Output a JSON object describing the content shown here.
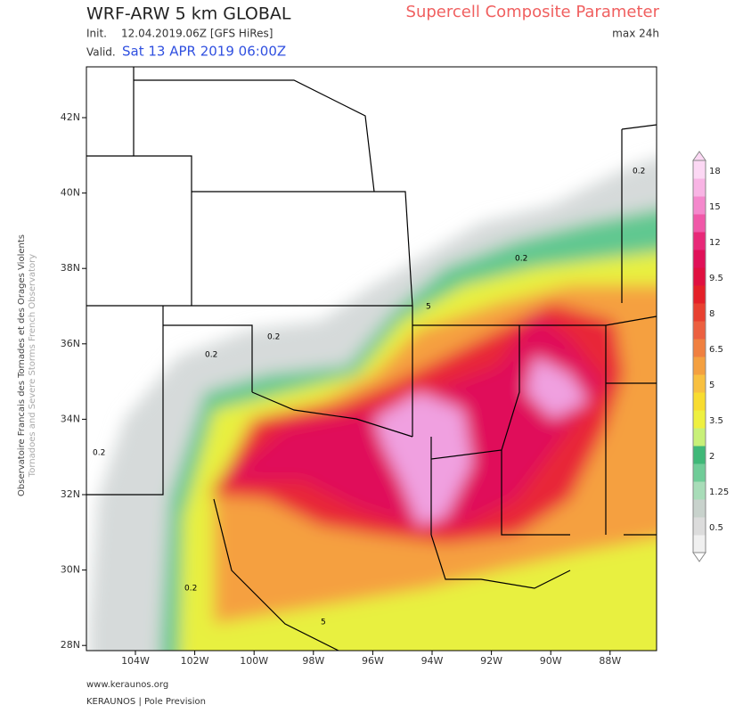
{
  "header": {
    "model": "WRF-ARW 5 km GLOBAL",
    "init_label": "Init.",
    "init_value": "12.04.2019.06Z [GFS HiRes]",
    "valid_label": "Valid.",
    "valid_value": "Sat 13 APR 2019 06:00Z",
    "parameter": "Supercell Composite Parameter",
    "period": "max 24h"
  },
  "side_text": {
    "french": "Observatoire Francais des Tornades et des Orages Violents",
    "english": "Tornadoes and Severe Storms French Observatory"
  },
  "map": {
    "lat_labels": [
      "42N",
      "40N",
      "38N",
      "36N",
      "34N",
      "32N",
      "30N",
      "28N"
    ],
    "lon_labels": [
      "104W",
      "102W",
      "100W",
      "98W",
      "96W",
      "94W",
      "92W",
      "90W",
      "88W"
    ],
    "contour_labels": [
      "0.2",
      "0.2",
      "0.2",
      "0.2",
      "0.2",
      "0.2",
      "5",
      "5"
    ]
  },
  "colorbar": {
    "labels": [
      "0.5",
      "1.25",
      "2",
      "3.5",
      "5",
      "6.5",
      "8",
      "9.5",
      "12",
      "15",
      "18"
    ],
    "colors": [
      "#f0f0f0",
      "#dcdcdc",
      "#c8d2cc",
      "#a8dcb8",
      "#70cc98",
      "#40b878",
      "#c8f078",
      "#eef040",
      "#f8dc30",
      "#f8c040",
      "#f4a040",
      "#f08040",
      "#ec6040",
      "#e84030",
      "#e42028",
      "#e01040",
      "#e01058",
      "#e82878",
      "#f058a8",
      "#f488cc",
      "#f8b4e4",
      "#fcd8f4"
    ]
  },
  "footer": {
    "site": "www.keraunos.org",
    "org": "KERAUNOS | Pole Prevision"
  }
}
